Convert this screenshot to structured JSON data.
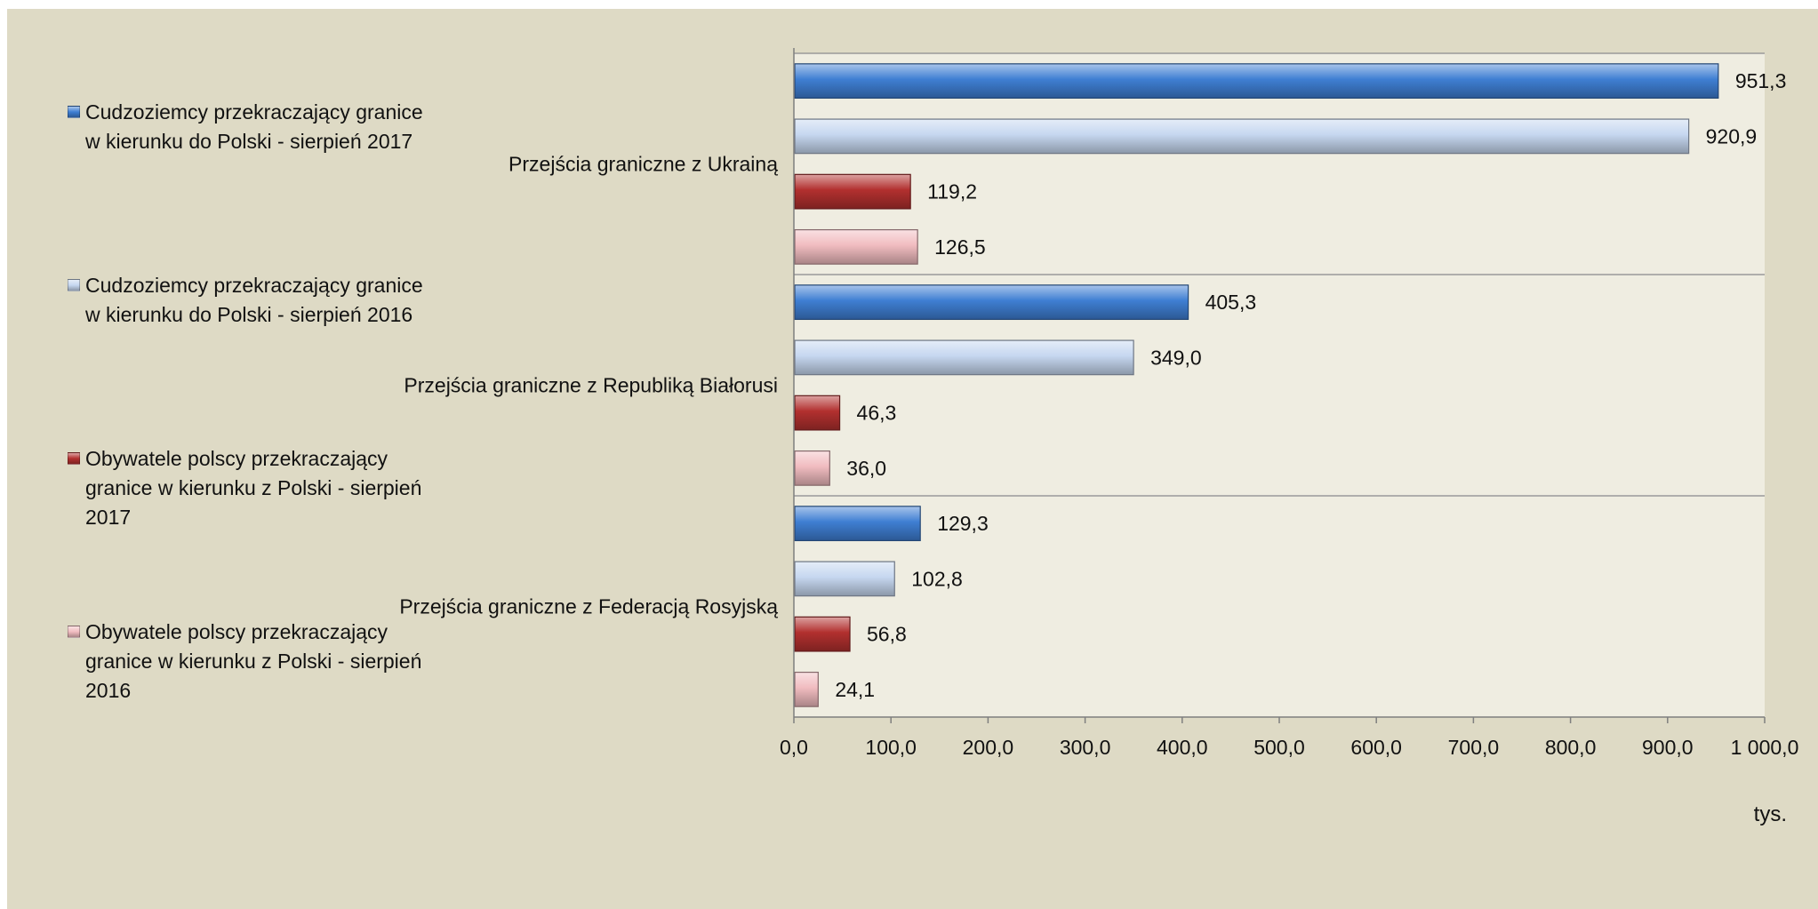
{
  "chart_data": {
    "type": "bar",
    "orientation": "horizontal",
    "categories": [
      "Przejścia graniczne z Ukrainą",
      "Przejścia graniczne z Republiką Białorusi",
      "Przejścia graniczne z Federacją Rosyjską"
    ],
    "series": [
      {
        "name": "Cudzoziemcy przekraczający granice w kierunku do Polski - sierpień 2017",
        "values": [
          951.3,
          405.3,
          129.3
        ],
        "labels": [
          "951,3",
          "405,3",
          "129,3"
        ],
        "color": "#3f7fd3"
      },
      {
        "name": "Cudzoziemcy przekraczający granice w kierunku do Polski - sierpień 2016",
        "values": [
          920.9,
          349.0,
          102.8
        ],
        "labels": [
          "920,9",
          "349,0",
          "102,8"
        ],
        "color": "#c6d7f0"
      },
      {
        "name": "Obywatele polscy przekraczający granice w kierunku z Polski - sierpień 2017",
        "values": [
          119.2,
          46.3,
          56.8
        ],
        "labels": [
          "119,2",
          "46,3",
          "56,8"
        ],
        "color": "#b2302f"
      },
      {
        "name": "Obywatele polscy przekraczający granice w kierunku z Polski - sierpień 2016",
        "values": [
          126.5,
          36.0,
          24.1
        ],
        "labels": [
          "126,5",
          "36,0",
          "24,1"
        ],
        "color": "#f1bcc0"
      }
    ],
    "xlim": [
      0,
      1000
    ],
    "x_ticks": [
      0,
      100,
      200,
      300,
      400,
      500,
      600,
      700,
      800,
      900,
      1000
    ],
    "x_tick_labels": [
      "0,0",
      "100,0",
      "200,0",
      "300,0",
      "400,0",
      "500,0",
      "600,0",
      "700,0",
      "800,0",
      "900,0",
      "1 000,0"
    ],
    "unit_label": "tys.",
    "legend_position": "left",
    "grid": false
  }
}
